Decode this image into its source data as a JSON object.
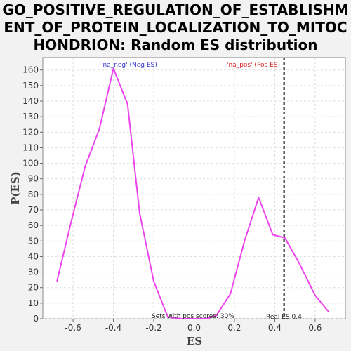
{
  "chart_data": {
    "type": "line",
    "title": "GO_POSITIVE_REGULATION_OF_ESTABLISHMENT_OF_PROTEIN_LOCALIZATION_TO_MITOCHONDRION: Random ES distribution",
    "xlabel": "ES",
    "ylabel": "P(ES)",
    "xlim": [
      -0.75,
      0.75
    ],
    "ylim": [
      0,
      168
    ],
    "x_ticks": [
      -0.6,
      -0.4,
      -0.2,
      0.0,
      0.2,
      0.4,
      0.6
    ],
    "x_tick_labels": [
      "-0.6",
      "-0.4",
      "-0.2",
      "0.0",
      "0.2",
      "0.4",
      "0.6"
    ],
    "y_ticks": [
      0,
      10,
      20,
      30,
      40,
      50,
      60,
      70,
      80,
      90,
      100,
      110,
      120,
      130,
      140,
      150,
      160
    ],
    "y_tick_labels": [
      "0",
      "10",
      "20",
      "30",
      "40",
      "50",
      "60",
      "70",
      "80",
      "90",
      "100",
      "110",
      "120",
      "130",
      "140",
      "150",
      "160"
    ],
    "grid": true,
    "series": [
      {
        "color": "#ee44ee",
        "x": [
          -0.68,
          -0.61,
          -0.54,
          -0.47,
          -0.4,
          -0.33,
          -0.27,
          -0.2,
          -0.13,
          -0.06,
          0.0,
          0.06,
          0.11,
          0.18,
          0.25,
          0.32,
          0.39,
          0.45,
          0.52,
          0.6,
          0.67
        ],
        "y": [
          24,
          62,
          98,
          122,
          161,
          138,
          68,
          24,
          1,
          0,
          0,
          0,
          2,
          16,
          50,
          78,
          54,
          52,
          36,
          15,
          4
        ]
      }
    ],
    "legend": [
      {
        "text": "'na_neg' (Neg ES)",
        "color": "#3333cc"
      },
      {
        "text": "'na_pos' (Pos ES)",
        "color": "#dd2222"
      }
    ],
    "real_es": {
      "value": 0.4459,
      "label": "Real ES 0.4"
    },
    "annotation": "Sets with pos scores: 30%"
  },
  "colors": {
    "line": "#ee44ee",
    "plot_bg": "#ffffff",
    "page_bg": "#f2f2f2",
    "grid": "#dddddd",
    "marker": "#000000"
  }
}
